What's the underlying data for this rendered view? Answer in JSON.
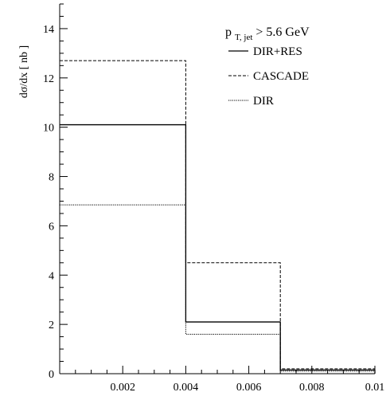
{
  "chart_data": {
    "type": "line",
    "step": true,
    "ylabel": "dσ/dx [ nb ]",
    "xlabel": "",
    "xlim": [
      0,
      0.01
    ],
    "ylim": [
      0,
      15
    ],
    "x_ticks": [
      "0.002",
      "0.004",
      "0.006",
      "0.008",
      "0.01"
    ],
    "y_ticks": [
      "0",
      "2",
      "4",
      "6",
      "8",
      "10",
      "12",
      "14"
    ],
    "bin_edges": [
      0,
      0.004,
      0.007,
      0.01
    ],
    "series": [
      {
        "name": "DIR+RES",
        "style": "solid",
        "values": [
          10.1,
          2.1,
          0.15
        ]
      },
      {
        "name": "CASCADE",
        "style": "dashed",
        "values": [
          12.7,
          4.5,
          0.2
        ]
      },
      {
        "name": "DIR",
        "style": "dotted",
        "values": [
          6.85,
          1.6,
          0.1
        ]
      }
    ],
    "annotation": {
      "prefix": "p",
      "subscript": "T, jet",
      "suffix": " > 5.6 GeV"
    },
    "grid": false,
    "legend_position": "top-right"
  }
}
